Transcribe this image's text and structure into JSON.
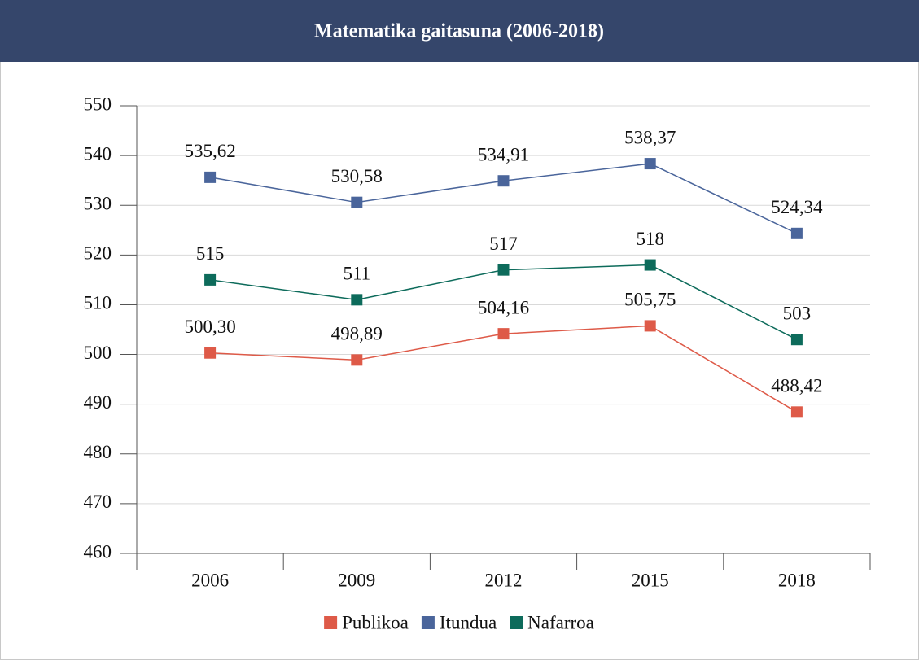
{
  "chart_data": {
    "type": "line",
    "title": "Matematika gaitasuna (2006-2018)",
    "categories": [
      "2006",
      "2009",
      "2012",
      "2015",
      "2018"
    ],
    "series": [
      {
        "name": "Publikoa",
        "color": "#de5a48",
        "values": [
          500.3,
          498.89,
          504.16,
          505.75,
          488.42
        ],
        "value_labels": [
          "500,30",
          "498,89",
          "504,16",
          "505,75",
          "488,42"
        ]
      },
      {
        "name": "Itundua",
        "color": "#4a659b",
        "values": [
          535.62,
          530.58,
          534.91,
          538.37,
          524.34
        ],
        "value_labels": [
          "535,62",
          "530,58",
          "534,91",
          "538,37",
          "524,34"
        ]
      },
      {
        "name": "Nafarroa",
        "color": "#0d6b5b",
        "values": [
          515,
          511,
          517,
          518,
          503
        ],
        "value_labels": [
          "515",
          "511",
          "517",
          "518",
          "503"
        ]
      }
    ],
    "ylim": [
      460,
      550
    ],
    "yticks": [
      460,
      470,
      480,
      490,
      500,
      510,
      520,
      530,
      540,
      550
    ],
    "grid": true,
    "legend": "bottom"
  }
}
